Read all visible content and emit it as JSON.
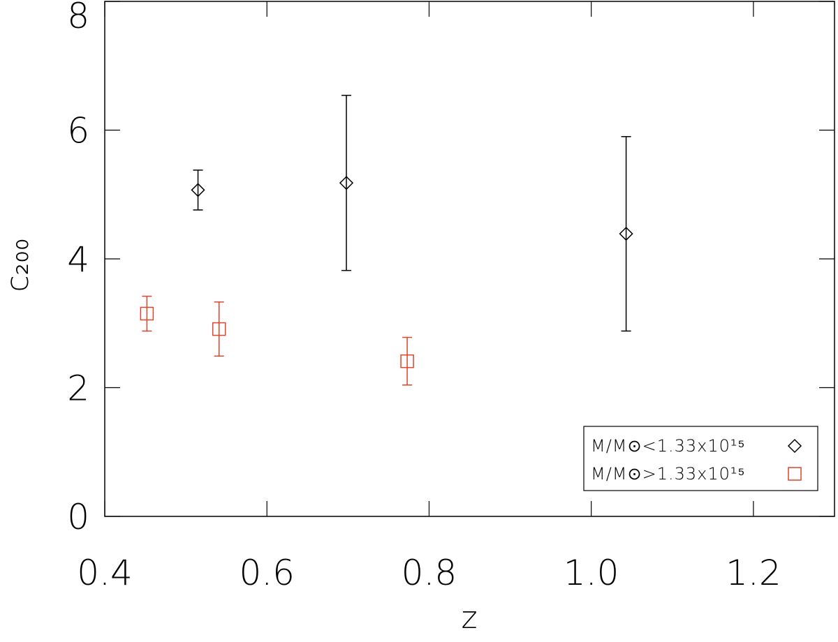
{
  "chart_data": {
    "type": "scatter",
    "x_label": "z",
    "y_label": "c₂₀₀",
    "xlim": [
      0.4,
      1.3
    ],
    "ylim": [
      0,
      8
    ],
    "xticks": [
      {
        "value": 0.4,
        "label": "0.4"
      },
      {
        "value": 0.6,
        "label": "0.6"
      },
      {
        "value": 0.8,
        "label": "0.8"
      },
      {
        "value": 1.0,
        "label": "1.0"
      },
      {
        "value": 1.2,
        "label": "1.2"
      }
    ],
    "yticks": [
      0,
      2,
      4,
      6,
      8
    ],
    "legend": "lower right",
    "series": [
      {
        "name": "M/M⊙<1.33x10¹⁵",
        "color": "#000000",
        "marker": "diamond",
        "x": [
          0.515,
          0.698,
          1.043
        ],
        "values": [
          5.07,
          5.18,
          4.39
        ],
        "errors": [
          0.31,
          1.36,
          1.51
        ]
      },
      {
        "name": "M/M⊙>1.33x10¹⁵",
        "color": "#e0442c",
        "marker": "square",
        "x": [
          0.452,
          0.541,
          0.773
        ],
        "values": [
          3.15,
          2.91,
          2.41
        ],
        "errors": [
          0.27,
          0.42,
          0.37
        ]
      }
    ]
  }
}
